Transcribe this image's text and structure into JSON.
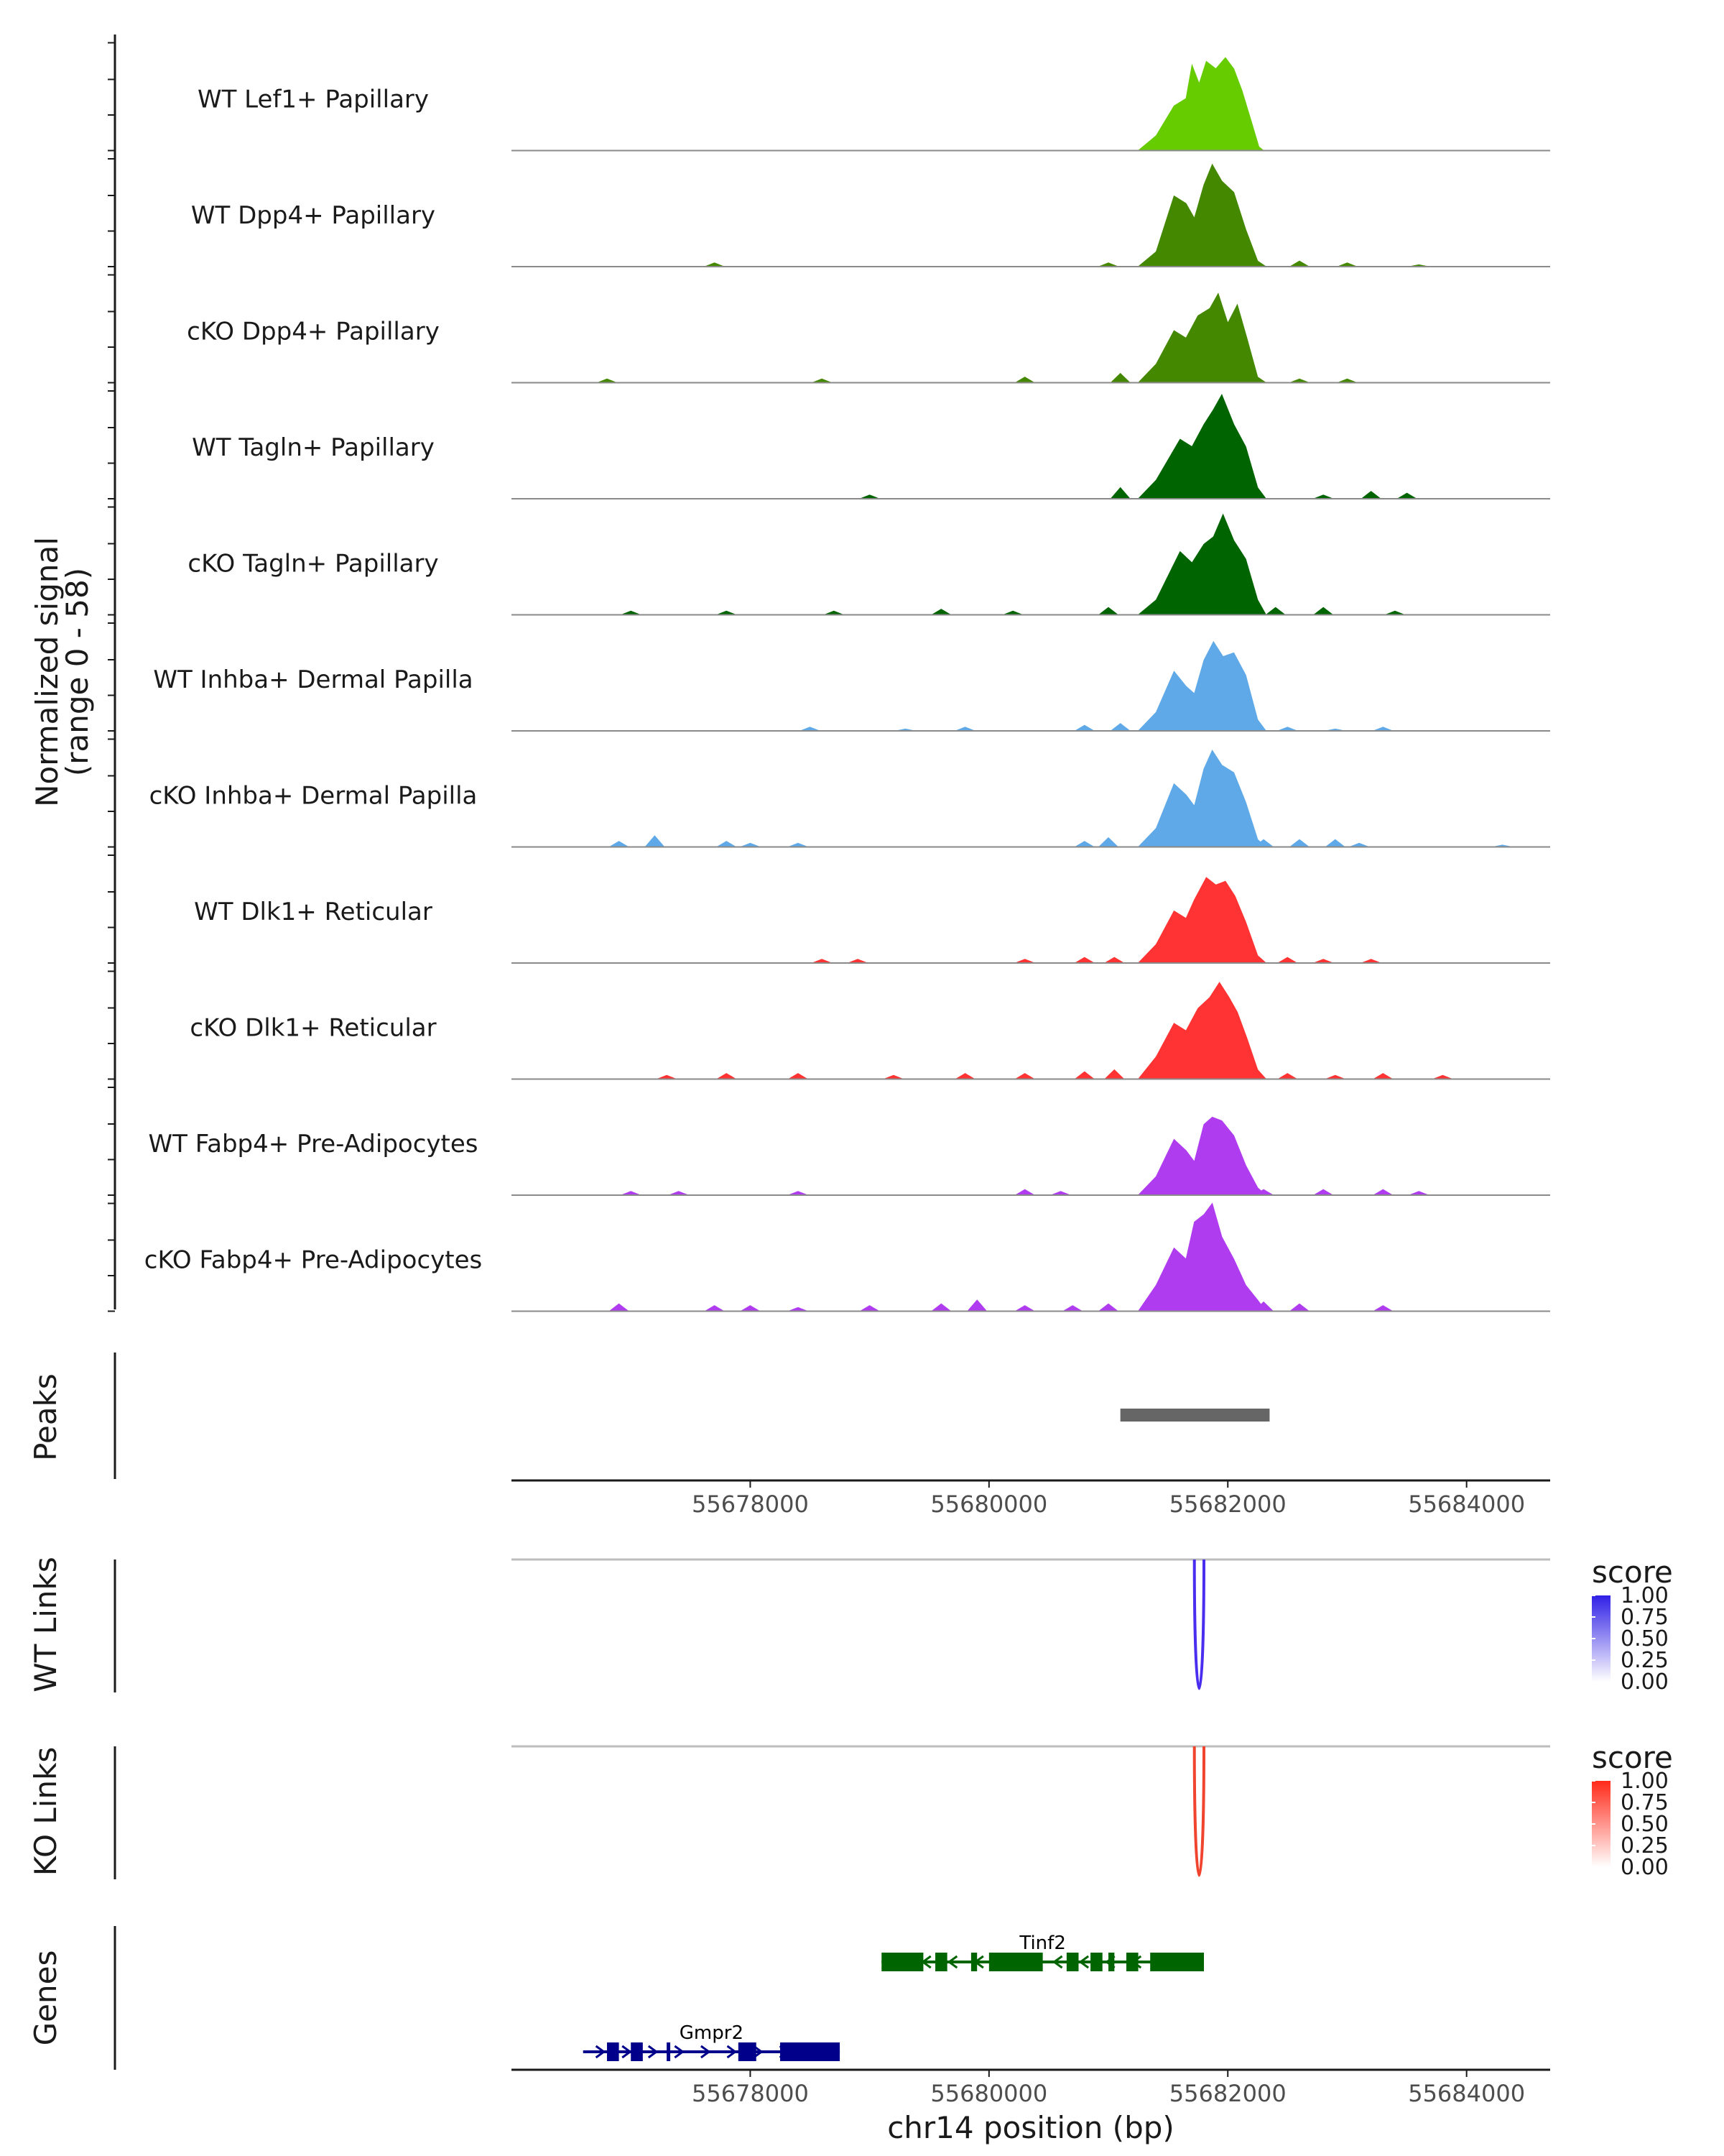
{
  "chart_data": {
    "type": "coverage",
    "region": {
      "chrom": "chr14",
      "start": 55676000,
      "end": 55684700
    },
    "coverage": {
      "ylabel": "Normalized signal",
      "ylabel_range": "(range 0 - 58)",
      "ylim": [
        0,
        58
      ],
      "tracks": [
        {
          "name": "WT Lef1+ Papillary",
          "color": "#66cc00",
          "noise": [],
          "peak": [
            [
              55681250,
              0
            ],
            [
              55681400,
              8
            ],
            [
              55681550,
              24
            ],
            [
              55681650,
              28
            ],
            [
              55681700,
              46
            ],
            [
              55681760,
              36
            ],
            [
              55681820,
              48
            ],
            [
              55681900,
              44
            ],
            [
              55681980,
              50
            ],
            [
              55682050,
              44
            ],
            [
              55682120,
              32
            ],
            [
              55682200,
              15
            ],
            [
              55682260,
              2
            ],
            [
              55682300,
              0
            ]
          ]
        },
        {
          "name": "WT Dpp4+ Papillary",
          "color": "#448800",
          "noise": [
            [
              55677700,
              2
            ],
            [
              55681000,
              2
            ],
            [
              55682600,
              3
            ],
            [
              55683000,
              2
            ],
            [
              55683600,
              1
            ]
          ],
          "peak": [
            [
              55681250,
              0
            ],
            [
              55681400,
              8
            ],
            [
              55681550,
              38
            ],
            [
              55681650,
              34
            ],
            [
              55681720,
              26
            ],
            [
              55681800,
              44
            ],
            [
              55681870,
              55
            ],
            [
              55681950,
              46
            ],
            [
              55682050,
              40
            ],
            [
              55682150,
              20
            ],
            [
              55682250,
              3
            ],
            [
              55682320,
              0
            ]
          ]
        },
        {
          "name": "cKO Dpp4+ Papillary",
          "color": "#448800",
          "noise": [
            [
              55676800,
              2
            ],
            [
              55678600,
              2
            ],
            [
              55680300,
              3
            ],
            [
              55681100,
              5
            ],
            [
              55682600,
              2
            ],
            [
              55683000,
              2
            ]
          ],
          "peak": [
            [
              55681250,
              0
            ],
            [
              55681400,
              10
            ],
            [
              55681550,
              28
            ],
            [
              55681650,
              24
            ],
            [
              55681750,
              36
            ],
            [
              55681850,
              40
            ],
            [
              55681920,
              48
            ],
            [
              55682000,
              32
            ],
            [
              55682080,
              42
            ],
            [
              55682160,
              24
            ],
            [
              55682250,
              3
            ],
            [
              55682320,
              0
            ]
          ]
        },
        {
          "name": "WT Tagln+ Papillary",
          "color": "#006400",
          "noise": [
            [
              55679000,
              2
            ],
            [
              55681100,
              6
            ],
            [
              55682800,
              2
            ],
            [
              55683200,
              4
            ],
            [
              55683500,
              3
            ]
          ],
          "peak": [
            [
              55681250,
              0
            ],
            [
              55681400,
              10
            ],
            [
              55681600,
              32
            ],
            [
              55681700,
              28
            ],
            [
              55681800,
              40
            ],
            [
              55681880,
              48
            ],
            [
              55681950,
              56
            ],
            [
              55682050,
              40
            ],
            [
              55682150,
              28
            ],
            [
              55682250,
              6
            ],
            [
              55682320,
              0
            ]
          ]
        },
        {
          "name": "cKO Tagln+ Papillary",
          "color": "#006400",
          "noise": [
            [
              55677000,
              2
            ],
            [
              55677800,
              2
            ],
            [
              55678700,
              2
            ],
            [
              55679600,
              3
            ],
            [
              55680200,
              2
            ],
            [
              55681000,
              4
            ],
            [
              55682400,
              4
            ],
            [
              55682800,
              4
            ],
            [
              55683400,
              2
            ]
          ],
          "peak": [
            [
              55681250,
              0
            ],
            [
              55681400,
              8
            ],
            [
              55681600,
              34
            ],
            [
              55681700,
              28
            ],
            [
              55681800,
              38
            ],
            [
              55681880,
              42
            ],
            [
              55681960,
              54
            ],
            [
              55682050,
              40
            ],
            [
              55682150,
              30
            ],
            [
              55682250,
              8
            ],
            [
              55682320,
              0
            ]
          ]
        },
        {
          "name": "WT Inhba+ Dermal Papilla",
          "color": "#5fa9e8",
          "noise": [
            [
              55678500,
              2
            ],
            [
              55679300,
              1
            ],
            [
              55679800,
              2
            ],
            [
              55680800,
              3
            ],
            [
              55681100,
              4
            ],
            [
              55682500,
              2
            ],
            [
              55682900,
              1
            ],
            [
              55683300,
              2
            ]
          ],
          "peak": [
            [
              55681250,
              0
            ],
            [
              55681400,
              10
            ],
            [
              55681550,
              32
            ],
            [
              55681650,
              24
            ],
            [
              55681720,
              20
            ],
            [
              55681800,
              38
            ],
            [
              55681880,
              48
            ],
            [
              55681960,
              40
            ],
            [
              55682050,
              42
            ],
            [
              55682150,
              30
            ],
            [
              55682250,
              6
            ],
            [
              55682320,
              0
            ]
          ]
        },
        {
          "name": "cKO Inhba+ Dermal Papilla",
          "color": "#5fa9e8",
          "noise": [
            [
              55676900,
              3
            ],
            [
              55677200,
              6
            ],
            [
              55677800,
              3
            ],
            [
              55678000,
              2
            ],
            [
              55678400,
              2
            ],
            [
              55680800,
              3
            ],
            [
              55681000,
              5
            ],
            [
              55682300,
              4
            ],
            [
              55682600,
              4
            ],
            [
              55682900,
              4
            ],
            [
              55683100,
              2
            ],
            [
              55684300,
              1
            ]
          ],
          "peak": [
            [
              55681250,
              0
            ],
            [
              55681400,
              10
            ],
            [
              55681550,
              34
            ],
            [
              55681650,
              28
            ],
            [
              55681720,
              22
            ],
            [
              55681800,
              42
            ],
            [
              55681870,
              52
            ],
            [
              55681950,
              44
            ],
            [
              55682050,
              40
            ],
            [
              55682150,
              24
            ],
            [
              55682250,
              4
            ],
            [
              55682320,
              0
            ]
          ]
        },
        {
          "name": "WT Dlk1+ Reticular",
          "color": "#ff3333",
          "noise": [
            [
              55678600,
              2
            ],
            [
              55678900,
              2
            ],
            [
              55680300,
              2
            ],
            [
              55680800,
              3
            ],
            [
              55681050,
              3
            ],
            [
              55682500,
              3
            ],
            [
              55682800,
              2
            ],
            [
              55683200,
              2
            ]
          ],
          "peak": [
            [
              55681250,
              0
            ],
            [
              55681400,
              10
            ],
            [
              55681550,
              28
            ],
            [
              55681650,
              24
            ],
            [
              55681720,
              34
            ],
            [
              55681820,
              46
            ],
            [
              55681900,
              42
            ],
            [
              55681980,
              44
            ],
            [
              55682060,
              36
            ],
            [
              55682150,
              22
            ],
            [
              55682250,
              4
            ],
            [
              55682320,
              0
            ]
          ]
        },
        {
          "name": "cKO Dlk1+ Reticular",
          "color": "#ff3333",
          "noise": [
            [
              55677300,
              2
            ],
            [
              55677800,
              3
            ],
            [
              55678400,
              3
            ],
            [
              55679200,
              2
            ],
            [
              55679800,
              3
            ],
            [
              55680300,
              3
            ],
            [
              55680800,
              4
            ],
            [
              55681050,
              5
            ],
            [
              55682500,
              3
            ],
            [
              55682900,
              2
            ],
            [
              55683300,
              3
            ],
            [
              55683800,
              2
            ]
          ],
          "peak": [
            [
              55681250,
              0
            ],
            [
              55681400,
              12
            ],
            [
              55681550,
              30
            ],
            [
              55681650,
              26
            ],
            [
              55681750,
              38
            ],
            [
              55681850,
              44
            ],
            [
              55681930,
              52
            ],
            [
              55682010,
              44
            ],
            [
              55682080,
              36
            ],
            [
              55682160,
              22
            ],
            [
              55682250,
              5
            ],
            [
              55682320,
              0
            ]
          ]
        },
        {
          "name": "WT Fabp4+ Pre-Adipocytes",
          "color": "#b03cf0",
          "noise": [
            [
              55677000,
              2
            ],
            [
              55677400,
              2
            ],
            [
              55678400,
              2
            ],
            [
              55680300,
              3
            ],
            [
              55680600,
              2
            ],
            [
              55682300,
              3
            ],
            [
              55682800,
              3
            ],
            [
              55683300,
              3
            ],
            [
              55683600,
              2
            ]
          ],
          "peak": [
            [
              55681250,
              0
            ],
            [
              55681400,
              10
            ],
            [
              55681550,
              30
            ],
            [
              55681650,
              24
            ],
            [
              55681720,
              18
            ],
            [
              55681800,
              38
            ],
            [
              55681870,
              42
            ],
            [
              55681950,
              40
            ],
            [
              55682050,
              32
            ],
            [
              55682150,
              16
            ],
            [
              55682250,
              4
            ],
            [
              55682320,
              0
            ]
          ]
        },
        {
          "name": "cKO Fabp4+ Pre-Adipocytes",
          "color": "#b03cf0",
          "noise": [
            [
              55676900,
              4
            ],
            [
              55677700,
              3
            ],
            [
              55678000,
              3
            ],
            [
              55678400,
              2
            ],
            [
              55679000,
              3
            ],
            [
              55679600,
              4
            ],
            [
              55679900,
              6
            ],
            [
              55680300,
              3
            ],
            [
              55680700,
              3
            ],
            [
              55681000,
              4
            ],
            [
              55682300,
              5
            ],
            [
              55682600,
              4
            ],
            [
              55683300,
              3
            ]
          ],
          "peak": [
            [
              55681250,
              0
            ],
            [
              55681400,
              14
            ],
            [
              55681550,
              34
            ],
            [
              55681650,
              28
            ],
            [
              55681720,
              48
            ],
            [
              55681800,
              52
            ],
            [
              55681870,
              58
            ],
            [
              55681950,
              40
            ],
            [
              55682050,
              28
            ],
            [
              55682150,
              14
            ],
            [
              55682250,
              6
            ],
            [
              55682320,
              0
            ]
          ]
        }
      ]
    },
    "peaks": {
      "label": "Peaks",
      "color": "#666666",
      "regions": [
        [
          55681100,
          55682350
        ]
      ]
    },
    "links": [
      {
        "label": "WT Links",
        "legend_title": "score",
        "legend_ticks": [
          "1.00",
          "0.75",
          "0.50",
          "0.25",
          "0.00"
        ],
        "color_high": "#3020e6",
        "color_low": "#ffffff",
        "arc_color": "#4a2ef0",
        "links": [
          [
            55681720,
            55681800,
            1.0
          ]
        ]
      },
      {
        "label": "KO Links",
        "legend_title": "score",
        "legend_ticks": [
          "1.00",
          "0.75",
          "0.50",
          "0.25",
          "0.00"
        ],
        "color_high": "#ff2a1a",
        "color_low": "#ffffff",
        "arc_color": "#f0442e",
        "links": [
          [
            55681720,
            55681800,
            1.0
          ]
        ]
      }
    ],
    "genes": {
      "label": "Genes",
      "items": [
        {
          "name": "Tinf2",
          "color": "#006400",
          "strand": "-",
          "start": 55679100,
          "end": 55681800,
          "exons": [
            [
              55679100,
              55679450
            ],
            [
              55679550,
              55679650
            ],
            [
              55679850,
              55679900
            ],
            [
              55680000,
              55680450
            ],
            [
              55680650,
              55680750
            ],
            [
              55680850,
              55680950
            ],
            [
              55681000,
              55681050
            ],
            [
              55681150,
              55681250
            ],
            [
              55681350,
              55681800
            ]
          ]
        },
        {
          "name": "Gmpr2",
          "color": "#00008b",
          "strand": "+",
          "start": 55676600,
          "end": 55678750,
          "exons": [
            [
              55676800,
              55676900
            ],
            [
              55677000,
              55677100
            ],
            [
              55677300,
              55677320
            ],
            [
              55677900,
              55678050
            ],
            [
              55678250,
              55678750
            ]
          ]
        }
      ]
    },
    "xaxis": {
      "label": "chr14 position (bp)",
      "ticks": [
        55678000,
        55680000,
        55682000,
        55684000
      ]
    }
  }
}
